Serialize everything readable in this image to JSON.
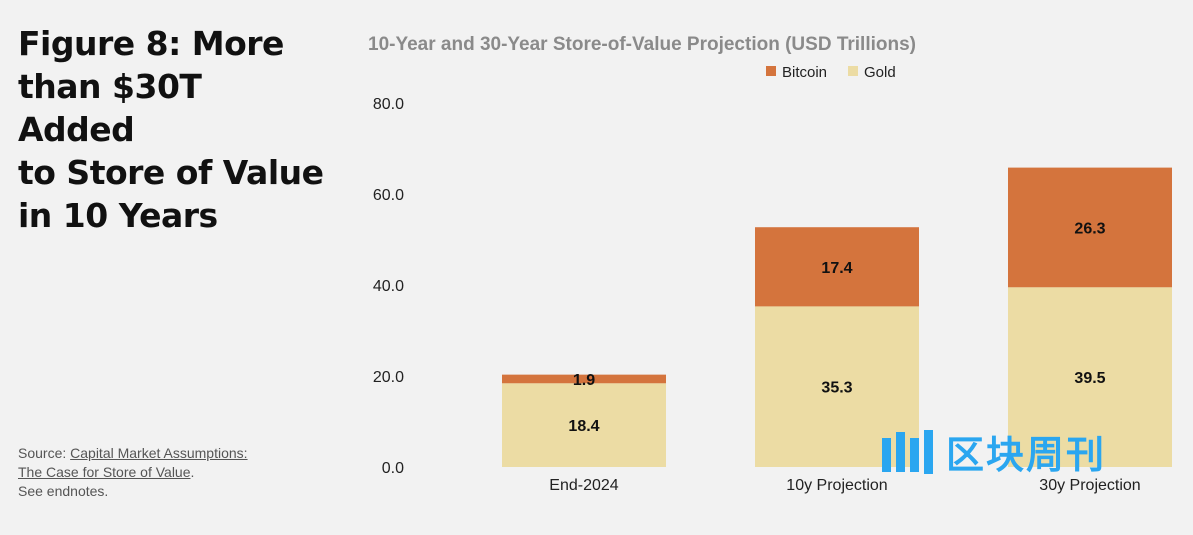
{
  "figure": {
    "title_lines": [
      "Figure 8: More",
      "than $30T Added",
      "to Store of Value",
      "in 10 Years"
    ],
    "source_prefix": "Source: ",
    "source_link_line1": "Capital Market Assumptions:",
    "source_link_line2": "The Case for Store of Value",
    "source_suffix": ".",
    "source_note": "See endnotes."
  },
  "watermark": {
    "text": "区块周刊"
  },
  "colors": {
    "bitcoin": "#d4743d",
    "gold": "#ecdca4",
    "axis_text": "#222222"
  },
  "chart_data": {
    "type": "bar",
    "stacked": true,
    "title": "10-Year and 30-Year Store-of-Value Projection (USD Trillions)",
    "categories": [
      "End-2024",
      "10y Projection",
      "30y Projection"
    ],
    "series": [
      {
        "name": "Gold",
        "values": [
          18.4,
          35.3,
          39.5
        ],
        "color": "#ecdca4"
      },
      {
        "name": "Bitcoin",
        "values": [
          1.9,
          17.4,
          26.3
        ],
        "color": "#d4743d"
      }
    ],
    "legend_order": [
      "Bitcoin",
      "Gold"
    ],
    "legend_position": "top",
    "ylim": [
      0,
      80
    ],
    "yticks": [
      "0.0",
      "20.0",
      "40.0",
      "60.0",
      "80.0"
    ],
    "grid": false
  }
}
